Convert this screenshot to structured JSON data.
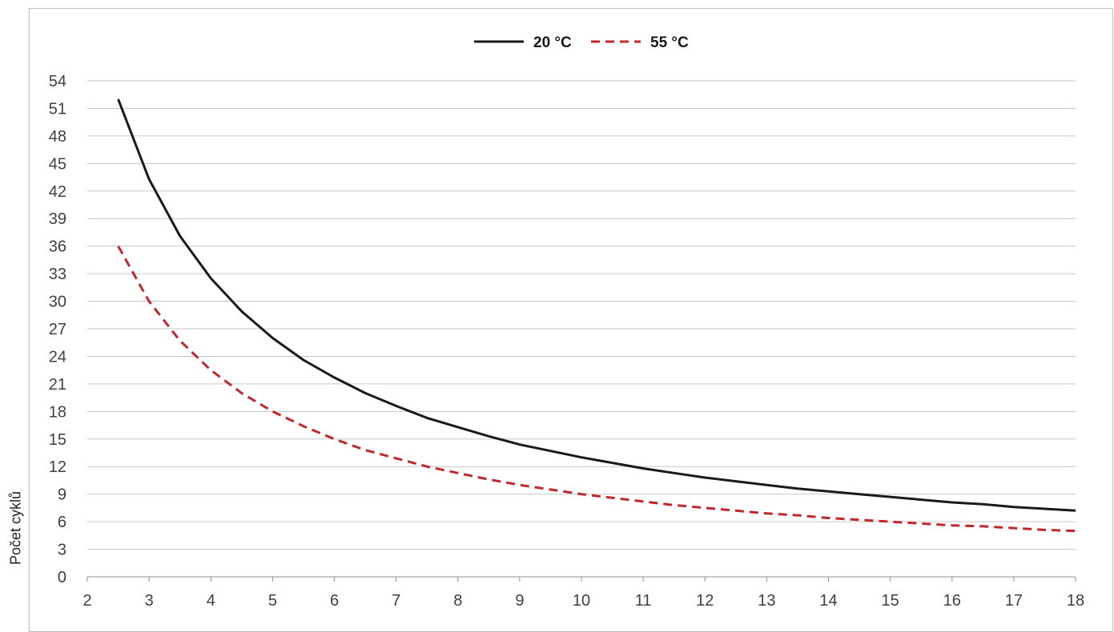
{
  "chart_data": {
    "type": "line",
    "title": "",
    "xlabel": "",
    "ylabel": "Počet cyklů",
    "xlim": [
      2,
      18
    ],
    "ylim": [
      0,
      54
    ],
    "x_ticks": [
      2,
      3,
      4,
      5,
      6,
      7,
      8,
      9,
      10,
      11,
      12,
      13,
      14,
      15,
      16,
      17,
      18
    ],
    "y_ticks": [
      0,
      3,
      6,
      9,
      12,
      15,
      18,
      21,
      24,
      27,
      30,
      33,
      36,
      39,
      42,
      45,
      48,
      51,
      54
    ],
    "grid": true,
    "legend_position": "top-center",
    "x": [
      2.5,
      3,
      3.5,
      4,
      4.5,
      5,
      5.5,
      6,
      6.5,
      7,
      7.5,
      8,
      8.5,
      9,
      9.5,
      10,
      10.5,
      11,
      11.5,
      12,
      12.5,
      13,
      13.5,
      14,
      14.5,
      15,
      15.5,
      16,
      16.5,
      17,
      17.5,
      18
    ],
    "series": [
      {
        "name": "20 °C",
        "color": "#1a1a1a",
        "dash": "solid",
        "values": [
          52,
          43.3,
          37.1,
          32.5,
          28.9,
          26,
          23.6,
          21.7,
          20,
          18.6,
          17.3,
          16.3,
          15.3,
          14.4,
          13.7,
          13,
          12.4,
          11.8,
          11.3,
          10.8,
          10.4,
          10,
          9.6,
          9.3,
          9,
          8.7,
          8.4,
          8.1,
          7.9,
          7.6,
          7.4,
          7.2
        ]
      },
      {
        "name": "55 °C",
        "color": "#c0272d",
        "dash": "dashed",
        "values": [
          36,
          30,
          25.7,
          22.5,
          20,
          18,
          16.4,
          15,
          13.8,
          12.9,
          12,
          11.3,
          10.6,
          10,
          9.5,
          9,
          8.6,
          8.2,
          7.8,
          7.5,
          7.2,
          6.9,
          6.7,
          6.4,
          6.2,
          6,
          5.8,
          5.6,
          5.5,
          5.3,
          5.1,
          5
        ]
      }
    ]
  }
}
